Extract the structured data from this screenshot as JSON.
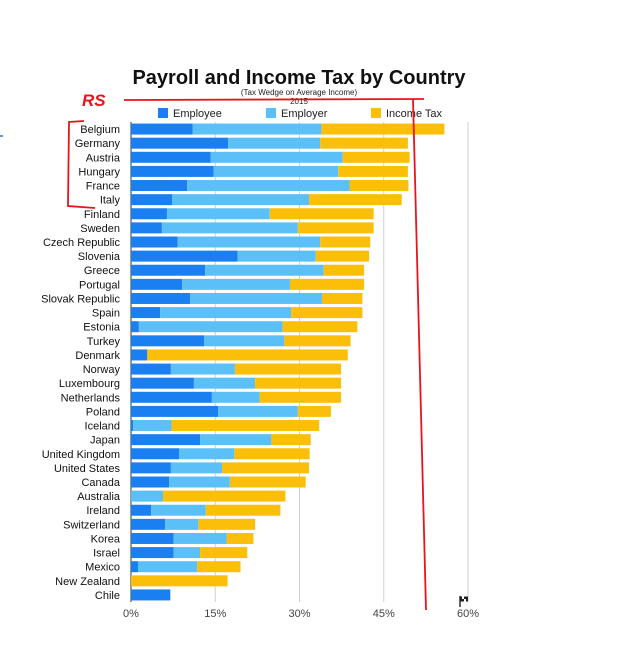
{
  "colors": {
    "employee": "#1a7ff0",
    "employer": "#5bc0f8",
    "income_tax": "#fbbf0a",
    "annotation": "#e8141c",
    "grid": "#d0d0d0"
  },
  "annotation": {
    "text": "RS"
  },
  "icons": {
    "flag": "flag-icon"
  },
  "chart_data": {
    "type": "bar",
    "orientation": "horizontal",
    "stacked": true,
    "title": "Payroll and Income Tax by Country",
    "subtitle": "(Tax Wedge on Average Income)",
    "year": "2015",
    "xlabel": "",
    "ylabel": "",
    "xlim": [
      0,
      60
    ],
    "xticks": [
      "0%",
      "15%",
      "30%",
      "45%",
      "60%"
    ],
    "xtick_values": [
      0,
      15,
      30,
      45,
      60
    ],
    "grid": true,
    "legend_position": "top",
    "categories": [
      "Belgium",
      "Germany",
      "Austria",
      "Hungary",
      "France",
      "Italy",
      "Finland",
      "Sweden",
      "Czech Republic",
      "Slovenia",
      "Greece",
      "Portugal",
      "Slovak Republic",
      "Spain",
      "Estonia",
      "Turkey",
      "Denmark",
      "Norway",
      "Luxembourg",
      "Netherlands",
      "Poland",
      "Iceland",
      "Japan",
      "United Kingdom",
      "United States",
      "Canada",
      "Australia",
      "Ireland",
      "Switzerland",
      "Korea",
      "Israel",
      "Mexico",
      "New Zealand",
      "Chile"
    ],
    "series": [
      {
        "name": "Employee",
        "values": [
          11.0,
          17.3,
          14.2,
          14.7,
          10.0,
          7.3,
          6.4,
          5.5,
          8.3,
          19.0,
          13.2,
          9.1,
          10.5,
          5.2,
          1.4,
          13.0,
          2.9,
          7.1,
          11.2,
          14.4,
          15.5,
          0.4,
          12.3,
          8.6,
          7.1,
          6.8,
          0.0,
          3.6,
          6.1,
          7.6,
          7.6,
          1.3,
          0.0,
          7.0
        ]
      },
      {
        "name": "Employer",
        "values": [
          22.9,
          16.4,
          23.5,
          22.2,
          28.9,
          24.4,
          18.3,
          24.2,
          25.4,
          13.9,
          21.1,
          19.2,
          23.5,
          23.3,
          25.6,
          14.3,
          0.0,
          11.4,
          10.9,
          8.5,
          14.2,
          6.8,
          12.7,
          9.8,
          9.1,
          10.8,
          5.7,
          9.7,
          5.9,
          9.4,
          4.7,
          10.5,
          0.0,
          0.0
        ]
      },
      {
        "name": "Income Tax",
        "values": [
          21.9,
          15.6,
          11.9,
          12.4,
          10.5,
          16.5,
          18.5,
          13.5,
          8.9,
          9.5,
          7.2,
          13.2,
          7.2,
          12.7,
          13.3,
          11.8,
          35.7,
          18.9,
          15.3,
          14.5,
          5.9,
          26.3,
          7.0,
          13.4,
          15.5,
          13.5,
          21.8,
          13.3,
          10.1,
          4.8,
          8.4,
          7.7,
          17.2,
          0.0
        ]
      }
    ]
  }
}
